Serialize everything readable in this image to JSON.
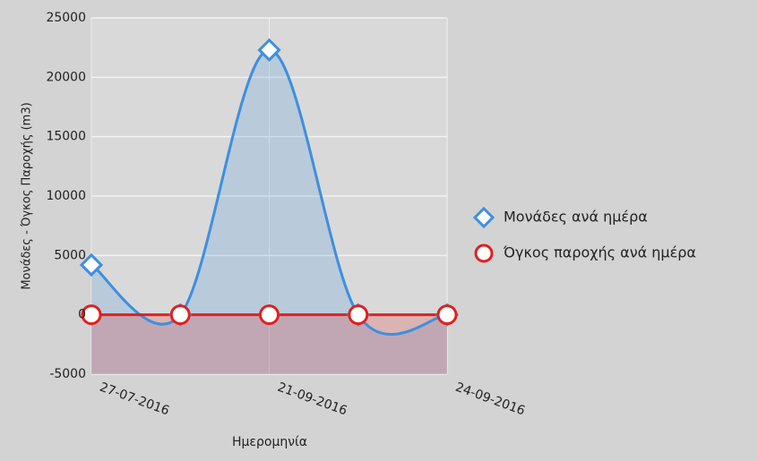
{
  "chart_data": {
    "type": "area",
    "categories": [
      "27-07-2016",
      null,
      "21-09-2016",
      null,
      "24-09-2016"
    ],
    "series": [
      {
        "name": "Μονάδες ανά ημέρα",
        "color": "#3d8fe0",
        "marker": "diamond",
        "values": [
          4200,
          0,
          22300,
          0,
          0
        ]
      },
      {
        "name": "Όγκος παροχής ανά ημέρα",
        "color": "#e02020",
        "marker": "circle",
        "values": [
          0,
          0,
          0,
          0,
          0
        ]
      }
    ],
    "ylabel": "Μονάδες - Όγκος Παροχής (m3)",
    "xlabel": "Ημερομηνία",
    "ylim": [
      -5000,
      25000
    ],
    "yticks": [
      -5000,
      0,
      5000,
      10000,
      15000,
      20000,
      25000
    ],
    "grid": true,
    "smooth": true,
    "legend": "right"
  }
}
